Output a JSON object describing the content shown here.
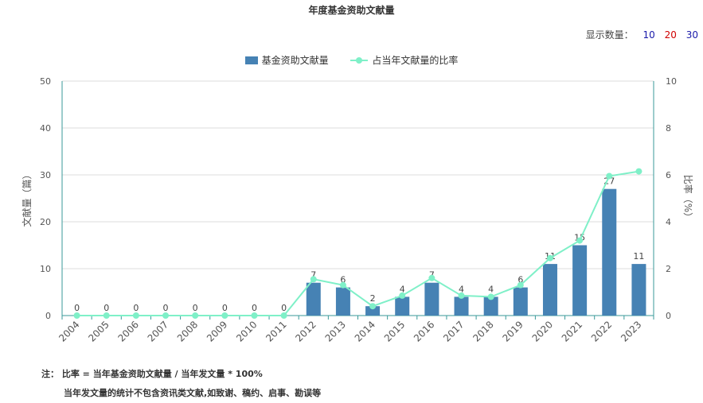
{
  "title": "年度基金资助文献量",
  "count_selector": {
    "label": "显示数量：",
    "options": [
      "10",
      "20",
      "30"
    ],
    "colors": [
      "#1a1aaa",
      "#d00000",
      "#1a1aaa"
    ]
  },
  "notes": {
    "line1": "注： 比率 = 当年基金资助文献量 / 当年发文量 * 100%",
    "line2": "当年发文量的统计不包含资讯类文献,如致谢、稿约、启事、勘误等"
  },
  "chart_data": {
    "type": "bar",
    "title": "年度基金资助文献量",
    "categories": [
      "2004",
      "2005",
      "2006",
      "2007",
      "2008",
      "2009",
      "2010",
      "2011",
      "2012",
      "2013",
      "2014",
      "2015",
      "2016",
      "2017",
      "2018",
      "2019",
      "2020",
      "2021",
      "2022",
      "2023"
    ],
    "series": [
      {
        "name": "基金资助文献量",
        "type": "bar",
        "axis": "left",
        "color": "#4682b4",
        "values": [
          0,
          0,
          0,
          0,
          0,
          0,
          0,
          0,
          7,
          6,
          2,
          4,
          7,
          4,
          4,
          6,
          11,
          15,
          27,
          11
        ]
      },
      {
        "name": "占当年文献量的比率",
        "type": "line",
        "axis": "right",
        "color": "#7ff0c8",
        "values": [
          0,
          0,
          0,
          0,
          0,
          0,
          0,
          0,
          1.55,
          1.3,
          0.4,
          0.85,
          1.6,
          0.85,
          0.8,
          1.3,
          2.45,
          3.2,
          5.95,
          6.15
        ]
      }
    ],
    "ylabel": "文献量（篇）",
    "ylabel_right": "比率（%）",
    "ylim": [
      0,
      50
    ],
    "ylim_right": [
      0,
      10
    ],
    "yticks": [
      "0",
      "10",
      "20",
      "30",
      "40",
      "50"
    ],
    "yticks_right": [
      "0",
      "2",
      "4",
      "6",
      "8",
      "10"
    ],
    "grid": true,
    "legend": "top-center"
  }
}
